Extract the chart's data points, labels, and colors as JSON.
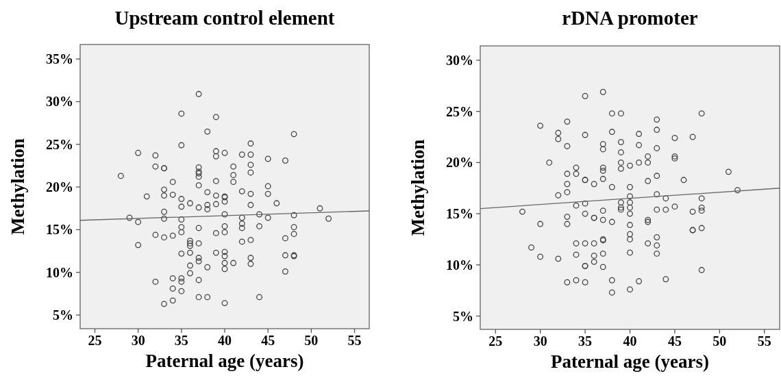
{
  "chart_data": [
    {
      "type": "scatter",
      "title": "Upstream control element",
      "xlabel": "Paternal age (years)",
      "ylabel": "Methylation",
      "xlim": [
        23.3,
        56.7
      ],
      "ylim": [
        3.4,
        36.7
      ],
      "xticks": [
        25,
        30,
        35,
        40,
        45,
        50,
        55
      ],
      "yticks": [
        {
          "value": 5,
          "label": "5%"
        },
        {
          "value": 10,
          "label": "10%"
        },
        {
          "value": 15,
          "label": "15%"
        },
        {
          "value": 20,
          "label": "20%"
        },
        {
          "value": 25,
          "label": "25%"
        },
        {
          "value": 30,
          "label": "30%"
        },
        {
          "value": 35,
          "label": "35%"
        }
      ],
      "grid": false,
      "series": [
        {
          "marker": "circle",
          "color": "#444444",
          "x": [
            37,
            35,
            39,
            38,
            48,
            35,
            43,
            30,
            32,
            39,
            39,
            40,
            42,
            43,
            45,
            47,
            32,
            33,
            33,
            37,
            37,
            37,
            41,
            43,
            41,
            43,
            28,
            37,
            34,
            37,
            39,
            41,
            33,
            31,
            33,
            34,
            38,
            39,
            40,
            40,
            40,
            42,
            43,
            45,
            45,
            35,
            35,
            36,
            37,
            38,
            38,
            39,
            43,
            46,
            51,
            33,
            33,
            29,
            30,
            35,
            40,
            42,
            44,
            45,
            48,
            52,
            35,
            35,
            37,
            40,
            40,
            39,
            42,
            42,
            44,
            48,
            48,
            32,
            33,
            34,
            47,
            30,
            36,
            36,
            36,
            37,
            42,
            43,
            35,
            36,
            39,
            40,
            40,
            37,
            37,
            43,
            47,
            48,
            48,
            36,
            38,
            40,
            40,
            41,
            43,
            36,
            47,
            32,
            34,
            35,
            35,
            37,
            34,
            35,
            37,
            38,
            44,
            33,
            34,
            40
          ],
          "values": [
            30.9,
            28.6,
            28.2,
            26.5,
            26.2,
            24.9,
            25.1,
            24.0,
            23.7,
            24.2,
            23.6,
            24.0,
            23.8,
            23.8,
            23.3,
            23.1,
            22.4,
            22.2,
            22.2,
            22.3,
            21.8,
            21.2,
            22.4,
            22.6,
            21.4,
            21.7,
            21.3,
            21.6,
            20.6,
            20.2,
            20.7,
            20.6,
            19.7,
            18.9,
            19.0,
            19.1,
            19.4,
            19.0,
            18.9,
            18.8,
            18.3,
            19.5,
            19.2,
            20.1,
            19.2,
            18.6,
            17.7,
            18.1,
            17.6,
            17.9,
            17.4,
            18.0,
            17.9,
            18.1,
            17.5,
            17.1,
            16.3,
            16.4,
            15.9,
            16.2,
            16.8,
            16.4,
            16.8,
            16.4,
            16.7,
            16.3,
            15.3,
            14.7,
            15.2,
            15.4,
            14.7,
            14.6,
            15.7,
            15.2,
            15.4,
            15.3,
            14.5,
            14.4,
            14.1,
            14.3,
            14.0,
            13.2,
            13.7,
            13.4,
            13.1,
            13.4,
            13.6,
            13.8,
            12.2,
            12.3,
            12.3,
            12.4,
            11.9,
            11.7,
            11.3,
            11.7,
            12.0,
            12.0,
            11.9,
            10.8,
            10.6,
            11.1,
            10.4,
            11.1,
            11.0,
            9.9,
            10.1,
            8.9,
            9.3,
            9.3,
            8.9,
            9.1,
            8.1,
            7.8,
            7.1,
            7.1,
            7.1,
            6.3,
            6.7,
            6.4
          ]
        },
        {
          "type": "line",
          "marker": "none",
          "color": "#666666",
          "x": [
            23.3,
            56.7
          ],
          "values": [
            16.1,
            17.2
          ]
        }
      ]
    },
    {
      "type": "scatter",
      "title": "rDNA promoter",
      "xlabel": "Paternal age (years)",
      "ylabel": "Methylation",
      "xlim": [
        23.3,
        56.7
      ],
      "ylim": [
        3.7,
        31.4
      ],
      "xticks": [
        25,
        30,
        35,
        40,
        45,
        50,
        55
      ],
      "yticks": [
        {
          "value": 5,
          "label": "5%"
        },
        {
          "value": 10,
          "label": "10%"
        },
        {
          "value": 15,
          "label": "15%"
        },
        {
          "value": 20,
          "label": "20%"
        },
        {
          "value": 25,
          "label": "25%"
        },
        {
          "value": 30,
          "label": "30%"
        }
      ],
      "grid": false,
      "series": [
        {
          "marker": "circle",
          "color": "#444444",
          "x": [
            37,
            35,
            38,
            39,
            48,
            33,
            30,
            43,
            43,
            32,
            32,
            35,
            38,
            41,
            45,
            47,
            33,
            37,
            37,
            39,
            39,
            41,
            43,
            42,
            42,
            45,
            45,
            31,
            39,
            41,
            40,
            34,
            37,
            37,
            33,
            34,
            39,
            51,
            43,
            35,
            35,
            36,
            37,
            38,
            40,
            42,
            46,
            33,
            33,
            32,
            40,
            43,
            44,
            48,
            52,
            34,
            35,
            39,
            39,
            39,
            40,
            40,
            40,
            28,
            35,
            37,
            43,
            44,
            45,
            47,
            48,
            48,
            30,
            33,
            33,
            36,
            36,
            37,
            38,
            40,
            42,
            42,
            47,
            47,
            48,
            40,
            40,
            37,
            37,
            43,
            43,
            34,
            35,
            36,
            42,
            29,
            30,
            32,
            34,
            36,
            37,
            40,
            43,
            36,
            35,
            35,
            37,
            48,
            33,
            34,
            35,
            38,
            41,
            44,
            40,
            38
          ],
          "values": [
            26.9,
            26.5,
            24.8,
            24.8,
            24.8,
            24.0,
            23.6,
            24.2,
            23.2,
            22.9,
            22.3,
            22.7,
            23.0,
            22.8,
            22.4,
            22.5,
            21.6,
            21.8,
            21.3,
            22.0,
            21.0,
            21.7,
            21.4,
            20.6,
            20.0,
            20.6,
            20.4,
            20.0,
            20.0,
            20.0,
            19.7,
            19.5,
            19.5,
            19.2,
            18.9,
            18.9,
            19.4,
            19.1,
            18.7,
            18.3,
            18.3,
            17.9,
            18.4,
            17.6,
            17.6,
            18.2,
            18.3,
            17.9,
            17.1,
            16.8,
            16.7,
            16.9,
            16.5,
            16.5,
            17.3,
            15.8,
            16.0,
            16.1,
            15.6,
            15.4,
            16.1,
            15.6,
            15.0,
            15.2,
            15.0,
            15.3,
            15.4,
            15.4,
            15.7,
            15.2,
            15.6,
            15.3,
            14.0,
            14.7,
            14.0,
            14.6,
            14.6,
            14.4,
            14.2,
            13.9,
            14.4,
            14.2,
            13.4,
            13.4,
            13.6,
            13.0,
            12.5,
            12.5,
            12.4,
            12.7,
            11.9,
            12.1,
            12.1,
            12.1,
            12.1,
            11.7,
            10.8,
            10.6,
            11.0,
            10.9,
            11.1,
            11.2,
            11.1,
            10.3,
            9.9,
            9.9,
            9.8,
            9.5,
            8.3,
            8.5,
            8.3,
            8.5,
            8.4,
            8.6,
            7.6,
            7.3
          ]
        },
        {
          "type": "line",
          "marker": "none",
          "color": "#666666",
          "x": [
            23.3,
            56.7
          ],
          "values": [
            15.5,
            17.5
          ]
        }
      ]
    }
  ]
}
